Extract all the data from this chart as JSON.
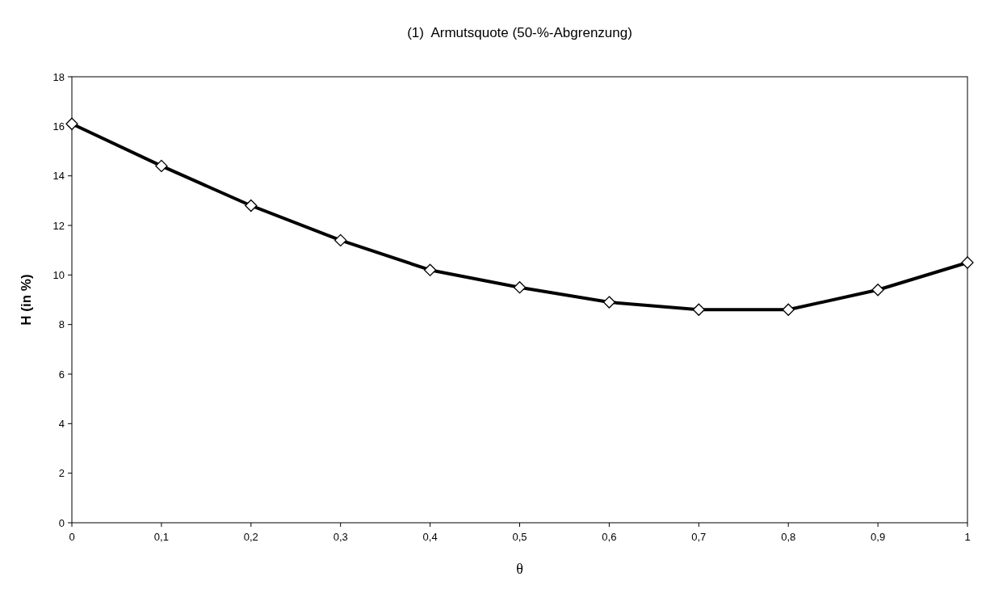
{
  "chart_data": {
    "type": "line",
    "title": "(1)  Armutsquote (50-%-Abgrenzung)",
    "xlabel": "θ",
    "ylabel": "H (in %)",
    "x": [
      0,
      0.1,
      0.2,
      0.3,
      0.4,
      0.5,
      0.6,
      0.7,
      0.8,
      0.9,
      1
    ],
    "series": [
      {
        "color": "#000000",
        "values": [
          16.1,
          14.4,
          12.8,
          11.4,
          10.2,
          9.5,
          8.9,
          8.6,
          8.6,
          9.4,
          10.5
        ]
      }
    ],
    "xlim": [
      0,
      1
    ],
    "xticks": [
      0,
      {
        "value": 0.1,
        "label": "0,1"
      },
      {
        "value": 0.2,
        "label": "0,2"
      },
      {
        "value": 0.3,
        "label": "0,3"
      },
      {
        "value": 0.4,
        "label": "0,4"
      },
      {
        "value": 0.5,
        "label": "0,5"
      },
      {
        "value": 0.6,
        "label": "0,6"
      },
      {
        "value": 0.7,
        "label": "0,7"
      },
      {
        "value": 0.8,
        "label": "0,8"
      },
      {
        "value": 0.9,
        "label": "0,9"
      },
      1
    ],
    "ylim": [
      0,
      18
    ],
    "yticks": [
      0,
      2,
      4,
      6,
      8,
      10,
      12,
      14,
      16,
      18
    ],
    "marker": "diamond",
    "line_style": "solid",
    "grid": false
  }
}
